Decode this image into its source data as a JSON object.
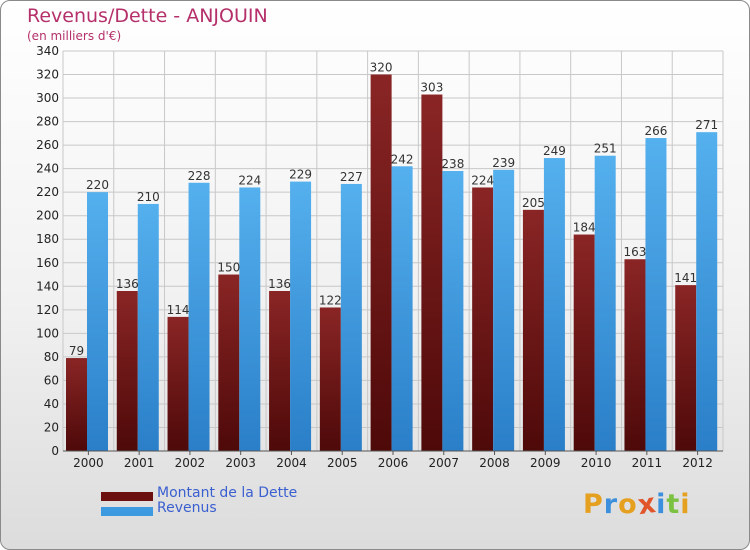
{
  "title": "Revenus/Dette - ANJOUIN",
  "subtitle": "(en milliers d'€)",
  "colors": {
    "title": "#b5306a",
    "dette": "#7a1a1a",
    "revenus": "#3d9ae0",
    "legend_text": "#3a5fd0",
    "grid": "#c8c8c8",
    "axis_text": "#222222"
  },
  "legend": [
    {
      "label": "Montant de la Dette",
      "color": "#6b0f0f"
    },
    {
      "label": "Revenus",
      "color": "#3d9ae0"
    }
  ],
  "logo": {
    "text": "Proxiti",
    "letters": [
      {
        "ch": "P",
        "color": "#e5a020"
      },
      {
        "ch": "r",
        "color": "#3c8fdc"
      },
      {
        "ch": "o",
        "color": "#e5a020"
      },
      {
        "ch": "x",
        "color": "#e0552a"
      },
      {
        "ch": "i",
        "color": "#3c8fdc"
      },
      {
        "ch": "t",
        "color": "#7cc242"
      },
      {
        "ch": "i",
        "color": "#e5a020"
      }
    ]
  },
  "chart_data": {
    "type": "bar",
    "categories": [
      "2000",
      "2001",
      "2002",
      "2003",
      "2004",
      "2005",
      "2006",
      "2007",
      "2008",
      "2009",
      "2010",
      "2011",
      "2012"
    ],
    "series": [
      {
        "name": "Montant de la Dette",
        "values": [
          79,
          136,
          114,
          150,
          136,
          122,
          320,
          303,
          224,
          205,
          184,
          163,
          141
        ]
      },
      {
        "name": "Revenus",
        "values": [
          220,
          210,
          228,
          224,
          229,
          227,
          242,
          238,
          239,
          249,
          251,
          266,
          271
        ]
      }
    ],
    "ylim": [
      0,
      340
    ],
    "yticks": [
      0,
      20,
      40,
      60,
      80,
      100,
      120,
      140,
      160,
      180,
      200,
      220,
      240,
      260,
      280,
      300,
      320,
      340
    ],
    "grid": true,
    "data_labels": true,
    "legend_position": "bottom-left"
  }
}
